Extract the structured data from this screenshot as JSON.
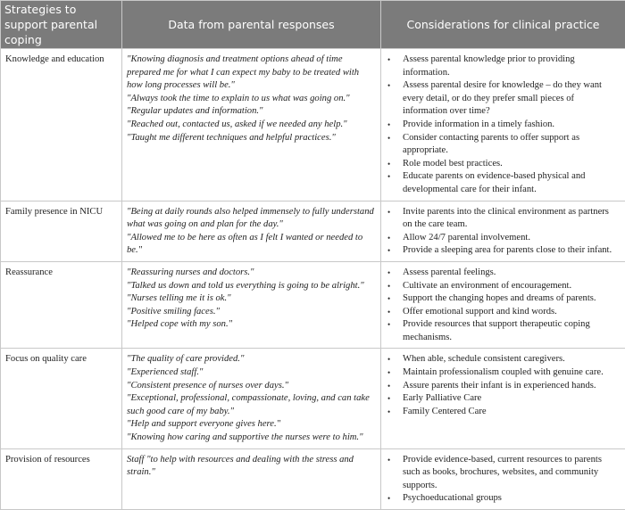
{
  "headers": [
    "Strategies to support parental coping",
    "Data from parental responses",
    "Considerations for clinical practice"
  ],
  "rows": [
    {
      "strategy": "Knowledge and education",
      "quotes": [
        "\"Knowing diagnosis and treatment options ahead of time prepared me for what I can expect my baby to be treated with how long processes will be.\"",
        "\"Always took the time to explain to us what was going on.\"",
        "\"Regular updates and information.\"",
        "\"Reached out, contacted us, asked if we needed any help.\"",
        "\"Taught me different techniques and helpful practices.\""
      ],
      "considerations": [
        "Assess parental knowledge prior to providing information.",
        "Assess parental desire for knowledge – do they want every detail, or do they prefer small pieces of information over time?",
        "Provide information in a timely fashion.",
        "Consider contacting parents to offer support as appropriate.",
        "Role model best practices.",
        "Educate parents on evidence-based physical and developmental care for their infant."
      ]
    },
    {
      "strategy": "Family presence in NICU",
      "quotes": [
        "\"Being at daily rounds also helped immensely to fully understand what was going on and plan for the day.\"",
        "\"Allowed me to be here as often as I felt I wanted or needed to be.\""
      ],
      "considerations": [
        "Invite parents into the clinical environment as partners on the care team.",
        "Allow 24/7 parental involvement.",
        "Provide a sleeping area for parents close to their infant."
      ]
    },
    {
      "strategy": "Reassurance",
      "quotes": [
        "\"Reassuring nurses and doctors.\"",
        "\"Talked us down and told us everything is going to be alright.\"",
        "\"Nurses telling me it is ok.\"",
        "\"Positive smiling faces.\"",
        "\"Helped cope with my son.\""
      ],
      "considerations": [
        "Assess parental feelings.",
        "Cultivate an environment of encouragement.",
        "Support the changing hopes and dreams of parents.",
        "Offer emotional support and kind words.",
        "Provide resources that support therapeutic coping mechanisms."
      ]
    },
    {
      "strategy": "Focus on quality care",
      "quotes": [
        "\"The quality of care provided.\"",
        "\"Experienced staff.\"",
        "\"Consistent presence of nurses over days.\"",
        "\"Exceptional, professional, compassionate, loving, and can take such good care of my baby.\"",
        "\"Help and support everyone gives here.\"",
        "\"Knowing how caring and supportive the nurses were to him.\""
      ],
      "considerations": [
        "When able, schedule consistent caregivers.",
        "Maintain professionalism coupled with genuine care.",
        "Assure parents their infant is in experienced hands.",
        "Early Palliative Care",
        "Family Centered Care"
      ]
    },
    {
      "strategy": "Provision of resources",
      "quotes": [
        "Staff \"to help with resources and dealing with the stress and strain.\""
      ],
      "considerations": [
        "Provide evidence-based, current resources to parents such as books, brochures, websites, and community supports.",
        "Psychoeducational groups"
      ]
    }
  ]
}
